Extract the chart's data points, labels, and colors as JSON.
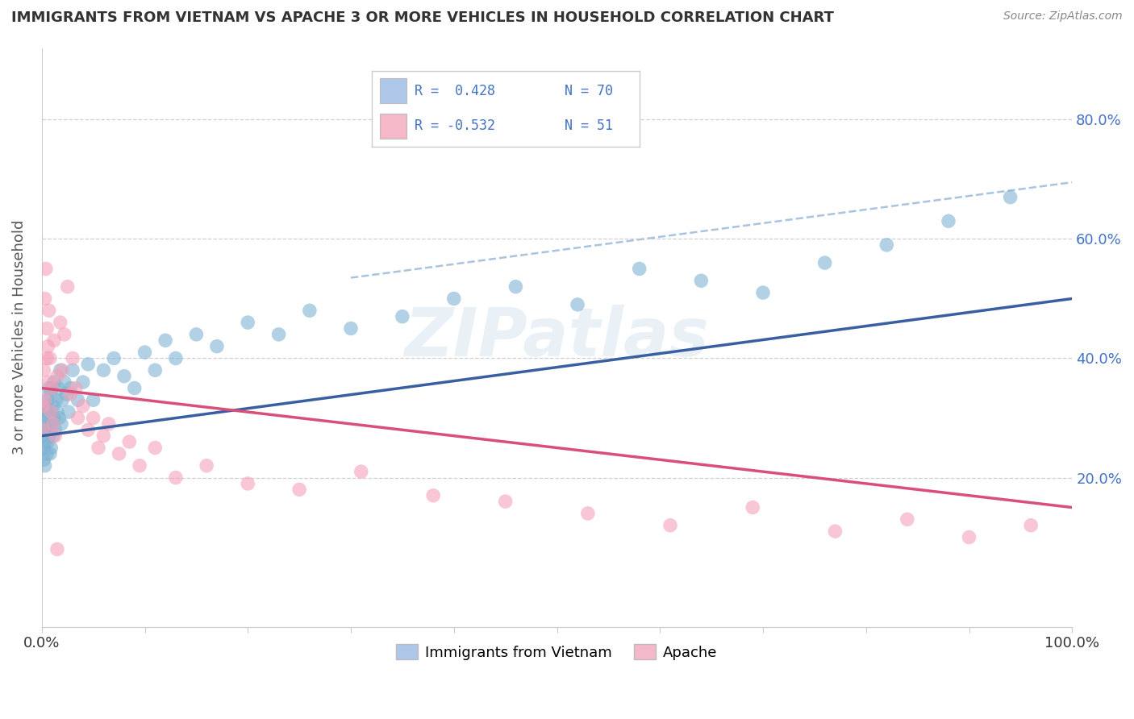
{
  "title": "IMMIGRANTS FROM VIETNAM VS APACHE 3 OR MORE VEHICLES IN HOUSEHOLD CORRELATION CHART",
  "source": "Source: ZipAtlas.com",
  "ylabel": "3 or more Vehicles in Household",
  "legend1_label": "Immigrants from Vietnam",
  "legend2_label": "Apache",
  "blue_color": "#7fb3d3",
  "pink_color": "#f4a0b8",
  "blue_line_color": "#3a5fa0",
  "pink_line_color": "#d94f7a",
  "dash_line_color": "#aac4e0",
  "watermark": "ZIPatlas",
  "background_color": "#ffffff",
  "grid_color": "#d0d0d0",
  "ytick_color": "#4472c4",
  "legend_r1": "R =  0.428",
  "legend_n1": "N = 70",
  "legend_r2": "R = -0.532",
  "legend_n2": "N = 51",
  "blue_patch_color": "#aec6e8",
  "pink_patch_color": "#f4b8c8",
  "blue_scatter_x": [
    0.001,
    0.002,
    0.002,
    0.003,
    0.003,
    0.003,
    0.004,
    0.004,
    0.005,
    0.005,
    0.005,
    0.006,
    0.006,
    0.006,
    0.007,
    0.007,
    0.007,
    0.008,
    0.008,
    0.008,
    0.009,
    0.009,
    0.01,
    0.01,
    0.011,
    0.011,
    0.012,
    0.012,
    0.013,
    0.014,
    0.015,
    0.016,
    0.017,
    0.018,
    0.019,
    0.02,
    0.022,
    0.024,
    0.026,
    0.028,
    0.03,
    0.035,
    0.04,
    0.045,
    0.05,
    0.06,
    0.07,
    0.08,
    0.09,
    0.1,
    0.11,
    0.12,
    0.13,
    0.15,
    0.17,
    0.2,
    0.23,
    0.26,
    0.3,
    0.35,
    0.4,
    0.46,
    0.52,
    0.58,
    0.64,
    0.7,
    0.76,
    0.82,
    0.88,
    0.94
  ],
  "blue_scatter_y": [
    0.27,
    0.25,
    0.23,
    0.3,
    0.22,
    0.26,
    0.28,
    0.32,
    0.24,
    0.29,
    0.31,
    0.26,
    0.3,
    0.33,
    0.27,
    0.31,
    0.35,
    0.28,
    0.24,
    0.34,
    0.25,
    0.31,
    0.29,
    0.35,
    0.27,
    0.32,
    0.3,
    0.36,
    0.28,
    0.33,
    0.31,
    0.35,
    0.3,
    0.38,
    0.29,
    0.33,
    0.36,
    0.34,
    0.31,
    0.35,
    0.38,
    0.33,
    0.36,
    0.39,
    0.33,
    0.38,
    0.4,
    0.37,
    0.35,
    0.41,
    0.38,
    0.43,
    0.4,
    0.44,
    0.42,
    0.46,
    0.44,
    0.48,
    0.45,
    0.47,
    0.5,
    0.52,
    0.49,
    0.55,
    0.53,
    0.51,
    0.56,
    0.59,
    0.63,
    0.67
  ],
  "pink_scatter_x": [
    0.001,
    0.002,
    0.003,
    0.004,
    0.005,
    0.006,
    0.007,
    0.008,
    0.01,
    0.012,
    0.015,
    0.018,
    0.02,
    0.022,
    0.025,
    0.028,
    0.03,
    0.033,
    0.035,
    0.04,
    0.045,
    0.05,
    0.055,
    0.06,
    0.065,
    0.075,
    0.085,
    0.095,
    0.11,
    0.13,
    0.16,
    0.2,
    0.25,
    0.31,
    0.38,
    0.45,
    0.53,
    0.61,
    0.69,
    0.77,
    0.84,
    0.9,
    0.96,
    0.001,
    0.003,
    0.005,
    0.007,
    0.009,
    0.011,
    0.013,
    0.015
  ],
  "pink_scatter_y": [
    0.32,
    0.38,
    0.5,
    0.55,
    0.45,
    0.42,
    0.48,
    0.4,
    0.35,
    0.43,
    0.37,
    0.46,
    0.38,
    0.44,
    0.52,
    0.34,
    0.4,
    0.35,
    0.3,
    0.32,
    0.28,
    0.3,
    0.25,
    0.27,
    0.29,
    0.24,
    0.26,
    0.22,
    0.25,
    0.2,
    0.22,
    0.19,
    0.18,
    0.21,
    0.17,
    0.16,
    0.14,
    0.12,
    0.15,
    0.11,
    0.13,
    0.1,
    0.12,
    0.28,
    0.33,
    0.4,
    0.36,
    0.31,
    0.29,
    0.27,
    0.08
  ],
  "xlim": [
    0.0,
    1.0
  ],
  "ylim": [
    -0.05,
    0.92
  ],
  "blue_trend_x0": 0.0,
  "blue_trend_y0": 0.27,
  "blue_trend_x1": 1.0,
  "blue_trend_y1": 0.5,
  "pink_trend_x0": 0.0,
  "pink_trend_y0": 0.35,
  "pink_trend_x1": 1.0,
  "pink_trend_y1": 0.15,
  "dash_trend_x0": 0.3,
  "dash_trend_y0": 0.535,
  "dash_trend_x1": 1.0,
  "dash_trend_y1": 0.695
}
